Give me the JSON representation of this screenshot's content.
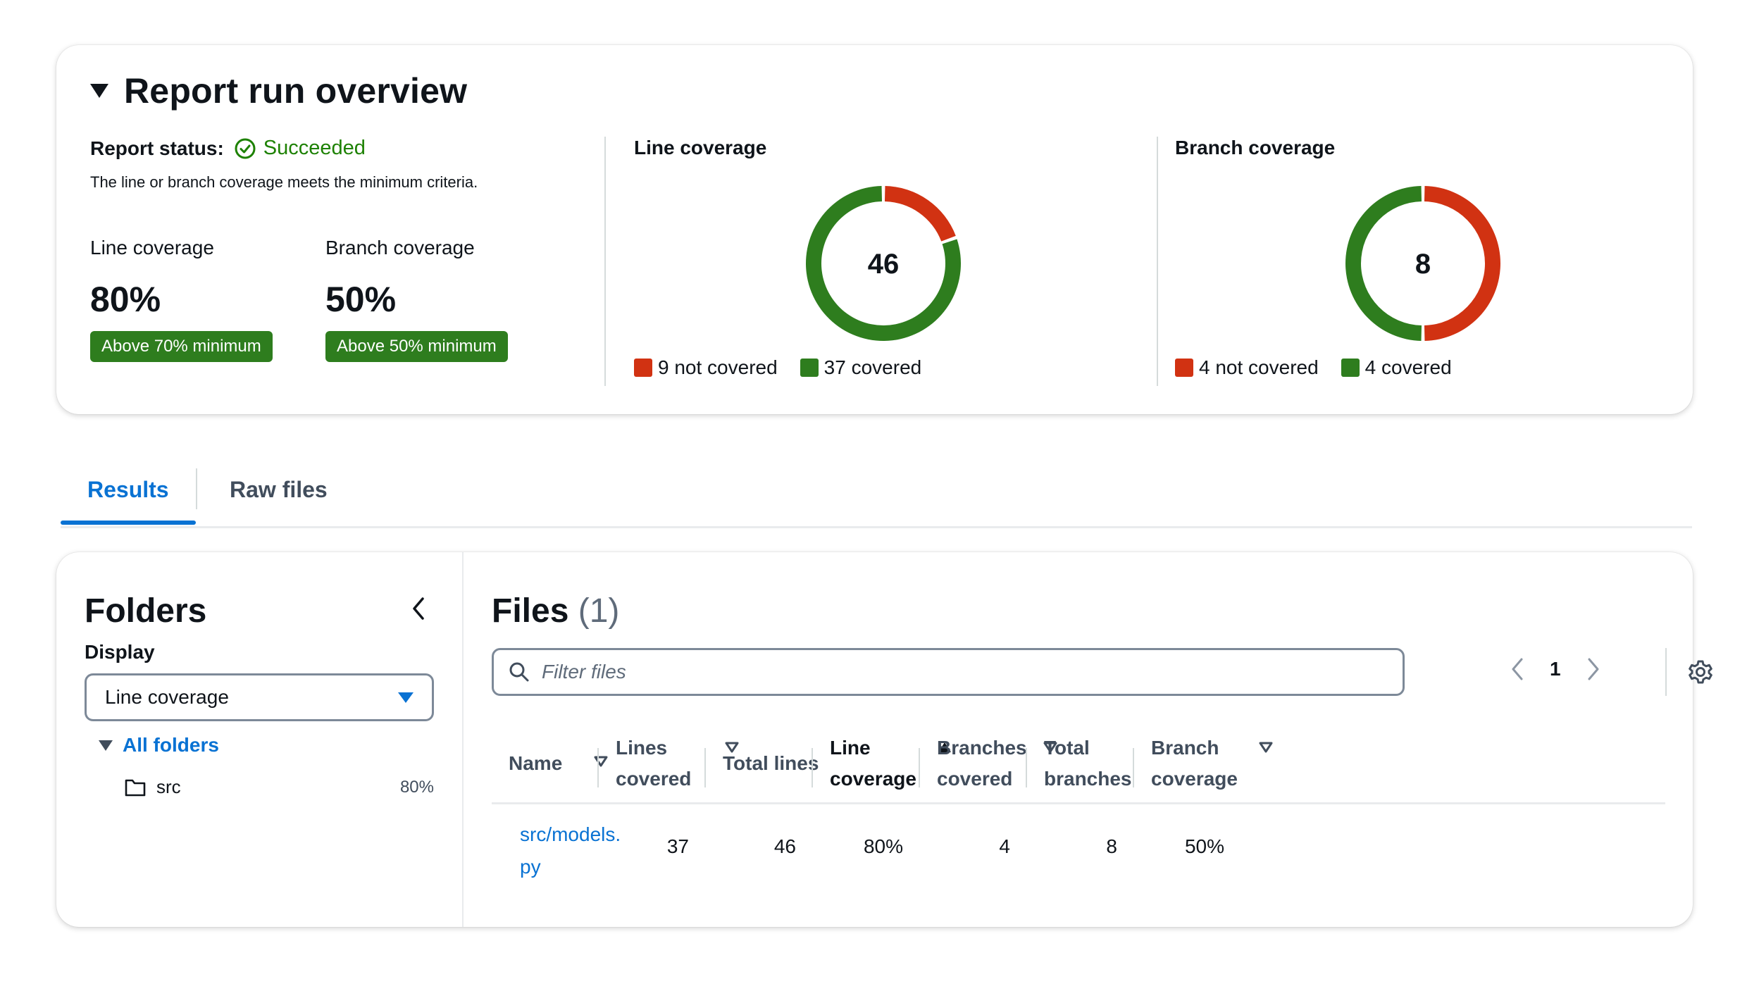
{
  "overview": {
    "title": "Report run overview",
    "status_label": "Report status:",
    "status_value": "Succeeded",
    "status_description": "The line or branch coverage meets the minimum criteria.",
    "metrics": [
      {
        "label": "Line coverage",
        "value": "80%",
        "badge": "Above 70% minimum"
      },
      {
        "label": "Branch coverage",
        "value": "50%",
        "badge": "Above 50% minimum"
      }
    ],
    "charts": [
      {
        "title": "Line coverage",
        "center_value": "46",
        "not_covered": 9,
        "covered": 37,
        "legend_not_covered": "9 not covered",
        "legend_covered": "37 covered"
      },
      {
        "title": "Branch coverage",
        "center_value": "8",
        "not_covered": 4,
        "covered": 4,
        "legend_not_covered": "4 not covered",
        "legend_covered": "4 covered"
      }
    ],
    "colors": {
      "covered": "#2e7d1e",
      "not_covered": "#d13212",
      "success": "#1d8102"
    }
  },
  "tabs": [
    {
      "label": "Results",
      "active": true
    },
    {
      "label": "Raw files",
      "active": false
    }
  ],
  "folders": {
    "title": "Folders",
    "display_label": "Display",
    "display_value": "Line coverage",
    "root_label": "All folders",
    "items": [
      {
        "name": "src",
        "value": "80%"
      }
    ]
  },
  "files": {
    "title": "Files",
    "count": "(1)",
    "filter_placeholder": "Filter files",
    "current_page": "1",
    "columns": [
      {
        "line1": "Name",
        "line2": ""
      },
      {
        "line1": "Lines",
        "line2": "covered"
      },
      {
        "line1": "Total lines",
        "line2": ""
      },
      {
        "line1": "Line",
        "line2": "coverage"
      },
      {
        "line1": "Branches",
        "line2": "covered"
      },
      {
        "line1": "Total",
        "line2": "branches"
      },
      {
        "line1": "Branch",
        "line2": "coverage"
      }
    ],
    "rows": [
      {
        "name_line1": "src/models.",
        "name_line2": "py",
        "lines_covered": "37",
        "total_lines": "46",
        "line_coverage": "80%",
        "branches_covered": "4",
        "total_branches": "8",
        "branch_coverage": "50%"
      }
    ]
  }
}
